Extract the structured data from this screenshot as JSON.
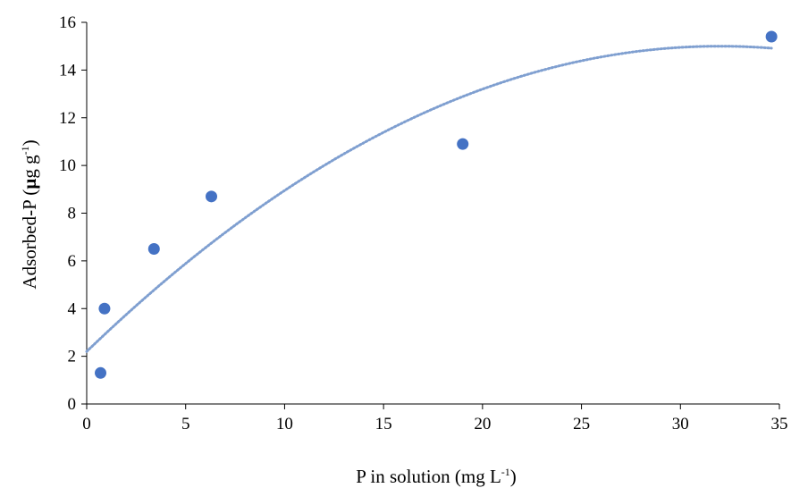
{
  "chart_data": {
    "type": "scatter",
    "xlabel": {
      "main": "P in solution (mg L",
      "sup": "-1",
      "tail": ")"
    },
    "ylabel": {
      "main": "Adsorbed-P (",
      "mu": "µ",
      "mid": "g g",
      "sup": "-1",
      "tail": ")"
    },
    "xlim": [
      0,
      35
    ],
    "ylim": [
      0,
      16
    ],
    "xticks": [
      0,
      5,
      10,
      15,
      20,
      25,
      30,
      35
    ],
    "yticks": [
      0,
      2,
      4,
      6,
      8,
      10,
      12,
      14,
      16
    ],
    "grid": false,
    "series": [
      {
        "marker_color": "#4472C4",
        "x": [
          0.7,
          0.9,
          3.4,
          6.3,
          19.0,
          34.6
        ],
        "y": [
          1.3,
          4.0,
          6.5,
          8.7,
          10.9,
          15.4
        ]
      }
    ],
    "trendline": {
      "style": "dotted",
      "color": "#7F9FD0",
      "type": "polynomial-2",
      "coefficients": [
        2.2,
        0.8,
        -0.0125
      ],
      "x_range": [
        0,
        34.6
      ]
    }
  }
}
